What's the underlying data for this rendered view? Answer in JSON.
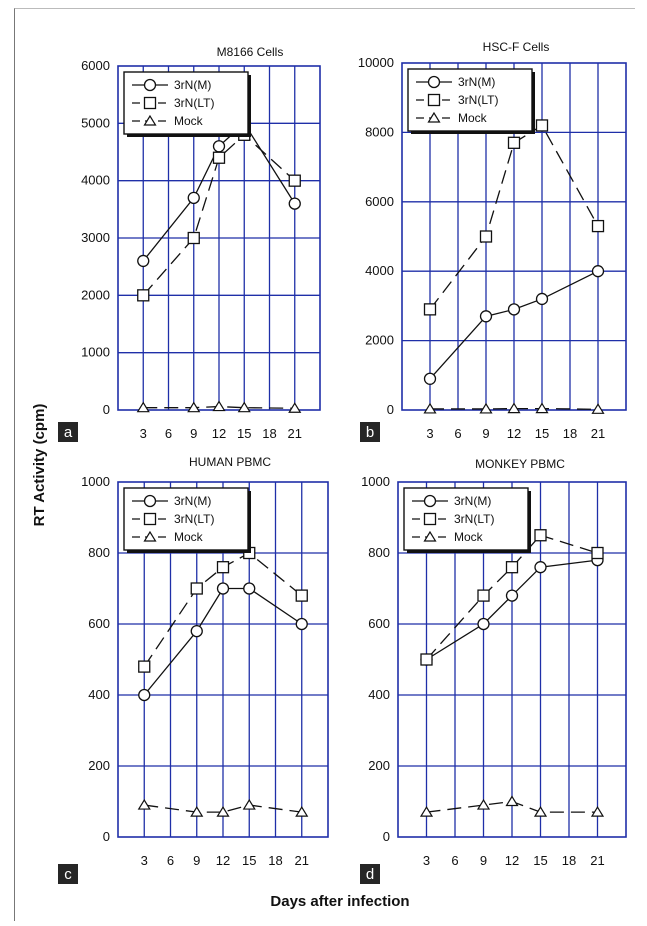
{
  "figure": {
    "ylabel": "RT Activity (cpm)",
    "xlabel": "Days after infection"
  },
  "chart_data": [
    {
      "type": "line",
      "panel": "a",
      "title": "M8166 Cells",
      "ylim": [
        0,
        6000
      ],
      "yticks": [
        0,
        1000,
        2000,
        3000,
        4000,
        5000,
        6000
      ],
      "xlim": [
        0,
        24
      ],
      "xticks": [
        3,
        6,
        9,
        12,
        15,
        18,
        21
      ],
      "grid": true,
      "legend_position": "top-left",
      "series": [
        {
          "name": "3rN(M)",
          "marker": "circle",
          "dash": "solid",
          "x": [
            3,
            9,
            12,
            15,
            21
          ],
          "y": [
            2600,
            3700,
            4600,
            5000,
            3600
          ]
        },
        {
          "name": "3rN(LT)",
          "marker": "square",
          "dash": "dashed",
          "x": [
            3,
            9,
            12,
            15,
            21
          ],
          "y": [
            2000,
            3000,
            4400,
            4800,
            4000
          ]
        },
        {
          "name": "Mock",
          "marker": "triangle",
          "dash": "dashed",
          "x": [
            3,
            9,
            12,
            15,
            21
          ],
          "y": [
            40,
            40,
            60,
            40,
            30
          ]
        }
      ]
    },
    {
      "type": "line",
      "panel": "b",
      "title": "HSC-F Cells",
      "ylim": [
        0,
        10000
      ],
      "yticks": [
        0,
        2000,
        4000,
        6000,
        8000,
        10000
      ],
      "ytick_labels": [
        "0",
        "2000",
        "4000",
        "6000",
        "8000",
        "10000"
      ],
      "xlim": [
        0,
        24
      ],
      "xticks": [
        3,
        6,
        9,
        12,
        15,
        18,
        21
      ],
      "grid": true,
      "legend_position": "top-left",
      "series": [
        {
          "name": "3rN(M)",
          "marker": "circle",
          "dash": "solid",
          "x": [
            3,
            9,
            12,
            15,
            21
          ],
          "y": [
            900,
            2700,
            2900,
            3200,
            4000
          ]
        },
        {
          "name": "3rN(LT)",
          "marker": "square",
          "dash": "dashed",
          "x": [
            3,
            9,
            12,
            15,
            21
          ],
          "y": [
            2900,
            5000,
            7700,
            8200,
            5300
          ]
        },
        {
          "name": "Mock",
          "marker": "triangle",
          "dash": "dashed",
          "x": [
            3,
            9,
            12,
            15,
            21
          ],
          "y": [
            30,
            30,
            40,
            40,
            20
          ]
        }
      ]
    },
    {
      "type": "line",
      "panel": "c",
      "title": "HUMAN PBMC",
      "ylim": [
        0,
        1000
      ],
      "yticks": [
        0,
        200,
        400,
        600,
        800,
        1000
      ],
      "xlim": [
        0,
        24
      ],
      "xticks": [
        3,
        6,
        9,
        12,
        15,
        18,
        21
      ],
      "grid": true,
      "legend_position": "top-left",
      "series": [
        {
          "name": "3rN(M)",
          "marker": "circle",
          "dash": "solid",
          "x": [
            3,
            9,
            12,
            15,
            21
          ],
          "y": [
            400,
            580,
            700,
            700,
            600
          ]
        },
        {
          "name": "3rN(LT)",
          "marker": "square",
          "dash": "dashed",
          "x": [
            3,
            9,
            12,
            15,
            21
          ],
          "y": [
            480,
            700,
            760,
            800,
            680
          ]
        },
        {
          "name": "Mock",
          "marker": "triangle",
          "dash": "dashed",
          "x": [
            3,
            9,
            12,
            15,
            21
          ],
          "y": [
            90,
            70,
            70,
            90,
            70
          ]
        }
      ]
    },
    {
      "type": "line",
      "panel": "d",
      "title": "MONKEY PBMC",
      "ylim": [
        0,
        1000
      ],
      "yticks": [
        0,
        200,
        400,
        600,
        800,
        1000
      ],
      "xlim": [
        0,
        24
      ],
      "xticks": [
        3,
        6,
        9,
        12,
        15,
        18,
        21
      ],
      "grid": true,
      "legend_position": "top-left",
      "series": [
        {
          "name": "3rN(M)",
          "marker": "circle",
          "dash": "solid",
          "x": [
            3,
            9,
            12,
            15,
            21
          ],
          "y": [
            500,
            600,
            680,
            760,
            780
          ]
        },
        {
          "name": "3rN(LT)",
          "marker": "square",
          "dash": "dashed",
          "x": [
            3,
            9,
            12,
            15,
            21
          ],
          "y": [
            500,
            680,
            760,
            850,
            800
          ]
        },
        {
          "name": "Mock",
          "marker": "triangle",
          "dash": "dashed",
          "x": [
            3,
            9,
            12,
            15,
            21
          ],
          "y": [
            70,
            90,
            100,
            70,
            70
          ]
        }
      ]
    }
  ]
}
